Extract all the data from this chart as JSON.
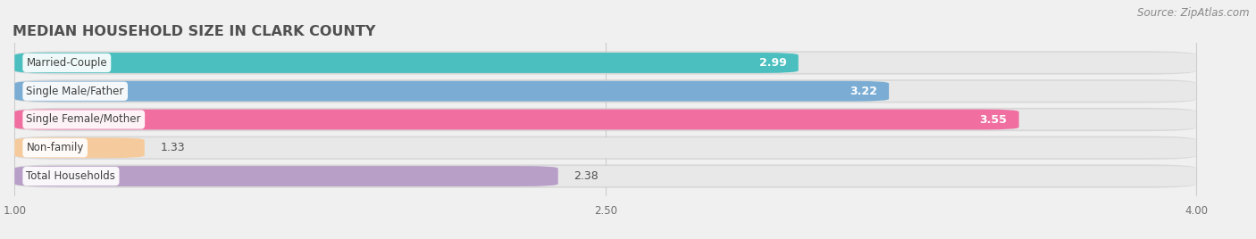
{
  "title": "MEDIAN HOUSEHOLD SIZE IN CLARK COUNTY",
  "source": "Source: ZipAtlas.com",
  "categories": [
    "Married-Couple",
    "Single Male/Father",
    "Single Female/Mother",
    "Non-family",
    "Total Households"
  ],
  "values": [
    2.99,
    3.22,
    3.55,
    1.33,
    2.38
  ],
  "bar_colors": [
    "#4bbfbf",
    "#7badd4",
    "#f06fa0",
    "#f5cb9e",
    "#b89fc8"
  ],
  "value_inside": [
    true,
    true,
    true,
    false,
    false
  ],
  "xmin": 1.0,
  "xmax": 4.0,
  "xticks": [
    1.0,
    2.5,
    4.0
  ],
  "xtick_labels": [
    "1.00",
    "2.50",
    "4.00"
  ],
  "bg_color": "#f0f0f0",
  "bar_bg_color": "#e8e8e8",
  "bar_separator_color": "#ffffff",
  "title_color": "#505050",
  "title_fontsize": 11.5,
  "source_fontsize": 8.5,
  "value_fontsize": 9,
  "cat_fontsize": 8.5,
  "bar_height": 0.72,
  "rounding": 0.09
}
